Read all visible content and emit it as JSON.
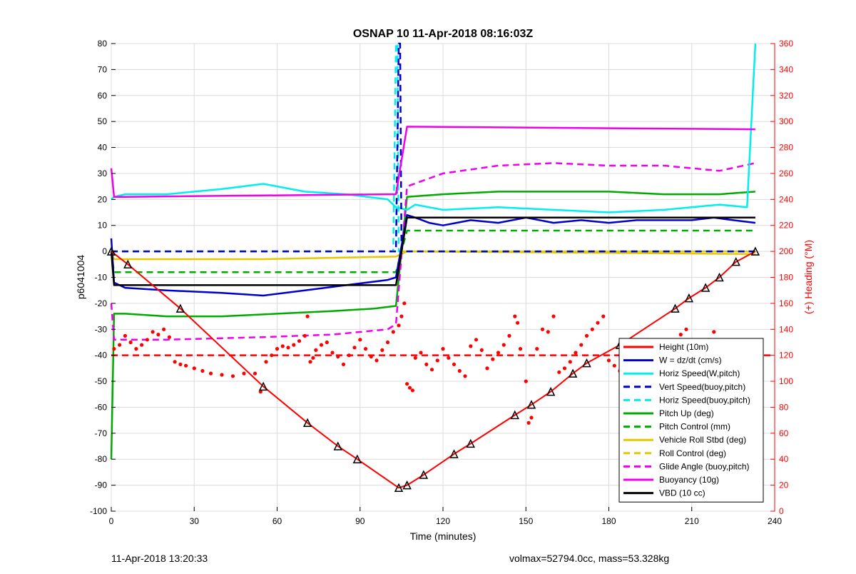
{
  "chart_data": {
    "type": "line",
    "title": "OSNAP 10 11-Apr-2018 08:16:03Z",
    "xlabel": "Time (minutes)",
    "ylabel": "p6041004",
    "y2label": "(+) Heading (°M)",
    "xlim": [
      0,
      240
    ],
    "ylim": [
      -100,
      80
    ],
    "y2lim": [
      0,
      360
    ],
    "xticks": [
      "0",
      "30",
      "60",
      "90",
      "120",
      "150",
      "180",
      "210",
      "240"
    ],
    "yticks": [
      "80",
      "70",
      "60",
      "50",
      "40",
      "30",
      "20",
      "10",
      "0",
      "-10",
      "-20",
      "-30",
      "-40",
      "-50",
      "-60",
      "-70",
      "-80",
      "-90",
      "-100"
    ],
    "y2ticks": [
      "360",
      "340",
      "320",
      "300",
      "280",
      "260",
      "240",
      "220",
      "200",
      "180",
      "160",
      "140",
      "120",
      "100",
      "80",
      "60",
      "40",
      "20",
      "0"
    ],
    "grid": true,
    "legend_position": "bottom-right",
    "colors": {
      "height": "#ff0000",
      "w": "#0000cc",
      "horiz_speed": "#00eeee",
      "pitch": "#00aa00",
      "roll": "#e6c800",
      "glide": "#ee00ee",
      "buoyancy": "#ee00ee",
      "vbd": "#000000",
      "heading": "#ff0000"
    },
    "series": [
      {
        "name": "Height (10m)",
        "x": [
          0,
          6,
          25,
          55,
          71,
          82,
          89,
          104,
          107,
          113,
          124,
          130,
          146,
          152,
          159,
          167,
          172,
          184,
          204,
          209,
          215,
          220,
          226,
          233
        ],
        "values": [
          0,
          -5,
          -22,
          -52,
          -66,
          -75,
          -80,
          -91,
          -90,
          -86,
          -78,
          -74,
          -63,
          -59,
          -54,
          -47,
          -43,
          -36,
          -22,
          -18,
          -14,
          -10,
          -4,
          0
        ]
      },
      {
        "name": "W = dz/dt (cm/s)",
        "x": [
          0,
          1,
          5,
          20,
          40,
          55,
          70,
          85,
          100,
          103,
          107,
          110,
          115,
          120,
          130,
          140,
          150,
          160,
          170,
          180,
          190,
          200,
          210,
          218,
          225,
          233
        ],
        "values": [
          5,
          -12,
          -14,
          -15,
          -16,
          -17,
          -15,
          -13,
          -11,
          -10,
          14,
          13,
          11,
          10,
          12,
          11,
          13,
          11,
          12,
          11,
          12,
          12,
          12,
          13,
          12,
          11
        ]
      },
      {
        "name": "Horiz Speed(W,pitch)",
        "x": [
          0,
          1,
          5,
          20,
          40,
          55,
          60,
          70,
          85,
          100,
          103,
          107,
          110,
          115,
          120,
          140,
          160,
          180,
          200,
          220,
          230,
          233
        ],
        "values": [
          20,
          21,
          22,
          22,
          24,
          26,
          25,
          23,
          22,
          20,
          17,
          16,
          18,
          17,
          16,
          17,
          16,
          15,
          16,
          18,
          17,
          80
        ]
      },
      {
        "name": "Vert Speed(buoy,pitch)",
        "x": [
          0,
          103,
          104,
          104.5,
          105,
          233
        ],
        "values": [
          0,
          0,
          80,
          80,
          0,
          0
        ]
      },
      {
        "name": "Horiz Speed(buoy,pitch)",
        "x": [
          0,
          102,
          103,
          103.5,
          104,
          233
        ],
        "values": [
          0,
          0,
          80,
          80,
          0,
          0
        ]
      },
      {
        "name": "Pitch Up (deg)",
        "x": [
          0,
          1,
          5,
          20,
          40,
          60,
          80,
          95,
          103,
          107,
          120,
          140,
          160,
          180,
          200,
          220,
          233
        ],
        "values": [
          -80,
          -24,
          -24,
          -25,
          -25,
          -24,
          -23,
          -22,
          -21,
          21,
          22,
          23,
          23,
          23,
          22,
          22,
          23
        ]
      },
      {
        "name": "Pitch Control (mm)",
        "x": [
          0,
          1,
          103,
          107,
          233
        ],
        "values": [
          0,
          -8,
          -8,
          8,
          8
        ]
      },
      {
        "name": "Vehicle Roll Stbd (deg)",
        "x": [
          0,
          1,
          55,
          103,
          107,
          233
        ],
        "values": [
          0,
          -3,
          -3,
          -2,
          0,
          -1
        ]
      },
      {
        "name": "Roll Control (deg)",
        "x": [
          0,
          1,
          103,
          107,
          233
        ],
        "values": [
          0,
          0,
          0,
          0,
          0
        ]
      },
      {
        "name": "Glide Angle (buoy,pitch)",
        "x": [
          0,
          1,
          20,
          55,
          80,
          100,
          103,
          107,
          120,
          140,
          160,
          180,
          200,
          220,
          233
        ],
        "values": [
          -20,
          -34,
          -34,
          -33,
          -32,
          -30,
          -28,
          25,
          30,
          33,
          34,
          33,
          33,
          31,
          34
        ]
      },
      {
        "name": "Buoyancy (10g)",
        "x": [
          0,
          1,
          5,
          100,
          103,
          107,
          233
        ],
        "values": [
          32,
          21,
          21,
          22,
          22,
          48,
          47
        ]
      },
      {
        "name": "VBD (10 cc)",
        "x": [
          0,
          1,
          2,
          103,
          107,
          233
        ],
        "values": [
          0,
          -13,
          -13,
          -13,
          13,
          13
        ]
      }
    ],
    "heading_reference": {
      "name": "Heading reference",
      "values_deg": [
        120
      ]
    },
    "heading_points": {
      "name": "Heading (°M)",
      "x": [
        1,
        3,
        5,
        7,
        9,
        11,
        13,
        15,
        17,
        19,
        21,
        23,
        25,
        27,
        30,
        33,
        36,
        40,
        44,
        48,
        52,
        54,
        56,
        58,
        60,
        62,
        64,
        66,
        68,
        70,
        71,
        72,
        73,
        74,
        76,
        78,
        80,
        82,
        84,
        86,
        88,
        90,
        92,
        94,
        96,
        98,
        100,
        102,
        104,
        105,
        106,
        107,
        108,
        109,
        110,
        112,
        114,
        116,
        118,
        120,
        122,
        124,
        126,
        128,
        130,
        132,
        134,
        136,
        138,
        140,
        142,
        144,
        146,
        147,
        148,
        150,
        151,
        152,
        154,
        156,
        158,
        160,
        162,
        164,
        166,
        168,
        170,
        172,
        174,
        176,
        178,
        180,
        182,
        184,
        186,
        188,
        190,
        192,
        194,
        196,
        198,
        200,
        202,
        204,
        206,
        208,
        210,
        212,
        214,
        216,
        218,
        220,
        222,
        224,
        226,
        228,
        230,
        232
      ],
      "values_deg": [
        125,
        128,
        135,
        130,
        125,
        128,
        132,
        138,
        136,
        140,
        134,
        115,
        113,
        112,
        110,
        108,
        106,
        105,
        104,
        106,
        106,
        92,
        115,
        120,
        125,
        127,
        126,
        128,
        131,
        135,
        150,
        115,
        118,
        124,
        128,
        130,
        122,
        119,
        113,
        120,
        126,
        132,
        125,
        119,
        116,
        124,
        130,
        138,
        143,
        150,
        160,
        98,
        95,
        93,
        118,
        122,
        113,
        109,
        116,
        125,
        118,
        113,
        108,
        104,
        127,
        132,
        124,
        110,
        117,
        122,
        128,
        135,
        150,
        145,
        125,
        100,
        68,
        72,
        125,
        140,
        138,
        150,
        107,
        110,
        115,
        122,
        128,
        135,
        140,
        145,
        150,
        116,
        112,
        108,
        104,
        101,
        98,
        96,
        95,
        94,
        92,
        115,
        124,
        128,
        136,
        140,
        115,
        120,
        126,
        132,
        138,
        130,
        115,
        118,
        122,
        128,
        126,
        118
      ]
    },
    "markers": {
      "name": "Height markers",
      "x": [
        0,
        6,
        25,
        55,
        71,
        82,
        89,
        104,
        107,
        113,
        124,
        130,
        146,
        152,
        159,
        167,
        172,
        184,
        204,
        209,
        215,
        220,
        226,
        233
      ]
    }
  },
  "footer": {
    "left": "11-Apr-2018 13:20:33",
    "right": "volmax=52794.0cc, mass=53.328kg"
  }
}
